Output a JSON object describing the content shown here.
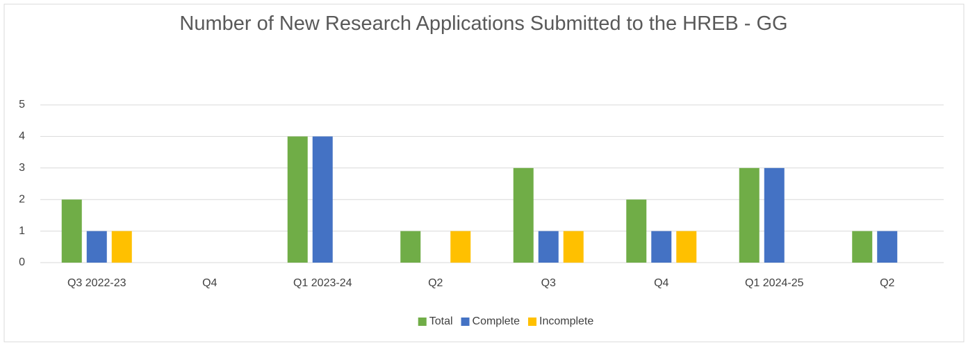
{
  "chart_data": {
    "type": "bar",
    "title": "Number of New Research Applications Submitted to the HREB - GG",
    "categories": [
      "Q3 2022-23",
      "Q4",
      "Q1 2023-24",
      "Q2",
      "Q3",
      "Q4",
      "Q1 2024-25",
      "Q2"
    ],
    "series": [
      {
        "name": "Total",
        "color": "#70ad47",
        "values": [
          2,
          0,
          4,
          1,
          3,
          2,
          3,
          1
        ]
      },
      {
        "name": "Complete",
        "color": "#4472c4",
        "values": [
          1,
          0,
          4,
          0,
          1,
          1,
          3,
          1
        ]
      },
      {
        "name": "Incomplete",
        "color": "#ffc000",
        "values": [
          1,
          0,
          0,
          1,
          1,
          1,
          0,
          0
        ]
      }
    ],
    "ylim": [
      0,
      5
    ],
    "yticks": [
      0,
      1,
      2,
      3,
      4,
      5
    ],
    "grid": true,
    "legend": "bottom"
  }
}
